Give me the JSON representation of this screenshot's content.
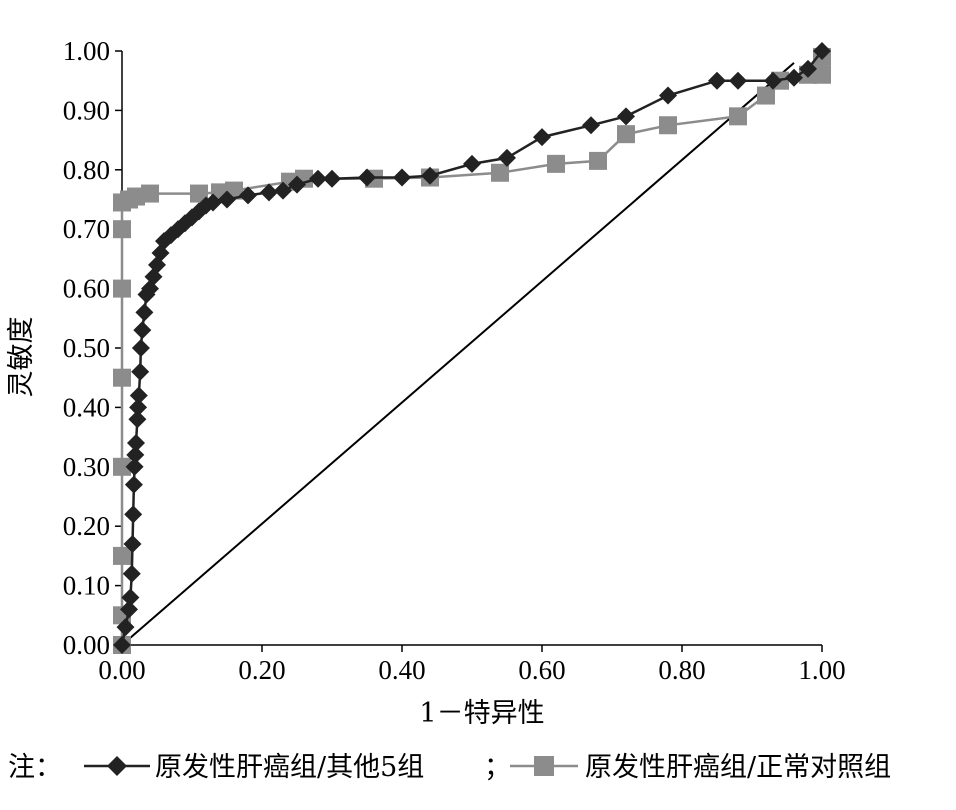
{
  "chart_data": {
    "type": "line",
    "xlabel": "1－特异性",
    "ylabel": "灵敏度",
    "xlim": [
      0,
      1
    ],
    "ylim": [
      0,
      1
    ],
    "x_ticks": [
      "0.00",
      "0.20",
      "0.40",
      "0.60",
      "0.80",
      "1.00"
    ],
    "y_ticks": [
      "0.00",
      "0.10",
      "0.20",
      "0.30",
      "0.40",
      "0.50",
      "0.60",
      "0.70",
      "0.80",
      "0.90",
      "1.00"
    ],
    "grid": false,
    "legend_position": "bottom",
    "legend_prefix": "注：",
    "legend_separator": "；",
    "series": [
      {
        "name": "原发性肝癌组/其他5组",
        "marker": "diamond",
        "color": "#222222",
        "points": [
          [
            0.0,
            0.0
          ],
          [
            0.005,
            0.03
          ],
          [
            0.01,
            0.06
          ],
          [
            0.012,
            0.08
          ],
          [
            0.014,
            0.12
          ],
          [
            0.015,
            0.17
          ],
          [
            0.016,
            0.22
          ],
          [
            0.017,
            0.27
          ],
          [
            0.018,
            0.3
          ],
          [
            0.019,
            0.32
          ],
          [
            0.02,
            0.34
          ],
          [
            0.022,
            0.38
          ],
          [
            0.023,
            0.4
          ],
          [
            0.024,
            0.42
          ],
          [
            0.026,
            0.46
          ],
          [
            0.027,
            0.5
          ],
          [
            0.029,
            0.53
          ],
          [
            0.032,
            0.56
          ],
          [
            0.035,
            0.59
          ],
          [
            0.04,
            0.6
          ],
          [
            0.045,
            0.62
          ],
          [
            0.05,
            0.64
          ],
          [
            0.055,
            0.66
          ],
          [
            0.06,
            0.68
          ],
          [
            0.07,
            0.69
          ],
          [
            0.08,
            0.7
          ],
          [
            0.09,
            0.71
          ],
          [
            0.1,
            0.72
          ],
          [
            0.11,
            0.73
          ],
          [
            0.12,
            0.74
          ],
          [
            0.13,
            0.745
          ],
          [
            0.15,
            0.75
          ],
          [
            0.18,
            0.757
          ],
          [
            0.21,
            0.762
          ],
          [
            0.23,
            0.765
          ],
          [
            0.25,
            0.775
          ],
          [
            0.28,
            0.785
          ],
          [
            0.3,
            0.785
          ],
          [
            0.35,
            0.787
          ],
          [
            0.4,
            0.787
          ],
          [
            0.44,
            0.79
          ],
          [
            0.5,
            0.81
          ],
          [
            0.55,
            0.82
          ],
          [
            0.6,
            0.855
          ],
          [
            0.67,
            0.875
          ],
          [
            0.72,
            0.89
          ],
          [
            0.78,
            0.925
          ],
          [
            0.85,
            0.95
          ],
          [
            0.88,
            0.95
          ],
          [
            0.93,
            0.95
          ],
          [
            0.96,
            0.955
          ],
          [
            0.98,
            0.97
          ],
          [
            1.0,
            1.0
          ]
        ]
      },
      {
        "name": "原发性肝癌组/正常对照组",
        "marker": "square",
        "color": "#8c8c8c",
        "points": [
          [
            0.0,
            0.0
          ],
          [
            0.0,
            0.05
          ],
          [
            0.0,
            0.15
          ],
          [
            0.0,
            0.3
          ],
          [
            0.0,
            0.45
          ],
          [
            0.0,
            0.6
          ],
          [
            0.0,
            0.7
          ],
          [
            0.0,
            0.745
          ],
          [
            0.01,
            0.75
          ],
          [
            0.02,
            0.755
          ],
          [
            0.04,
            0.76
          ],
          [
            0.11,
            0.76
          ],
          [
            0.14,
            0.762
          ],
          [
            0.16,
            0.765
          ],
          [
            0.24,
            0.78
          ],
          [
            0.26,
            0.785
          ],
          [
            0.36,
            0.785
          ],
          [
            0.44,
            0.787
          ],
          [
            0.54,
            0.795
          ],
          [
            0.62,
            0.81
          ],
          [
            0.68,
            0.815
          ],
          [
            0.72,
            0.86
          ],
          [
            0.78,
            0.875
          ],
          [
            0.88,
            0.89
          ],
          [
            0.92,
            0.925
          ],
          [
            0.94,
            0.95
          ],
          [
            0.98,
            0.96
          ],
          [
            1.0,
            0.96
          ],
          [
            1.0,
            0.99
          ]
        ]
      },
      {
        "name": "",
        "marker": "none",
        "color": "#000000",
        "points": [
          [
            0.0,
            0.0
          ],
          [
            0.96,
            0.98
          ]
        ]
      }
    ]
  }
}
